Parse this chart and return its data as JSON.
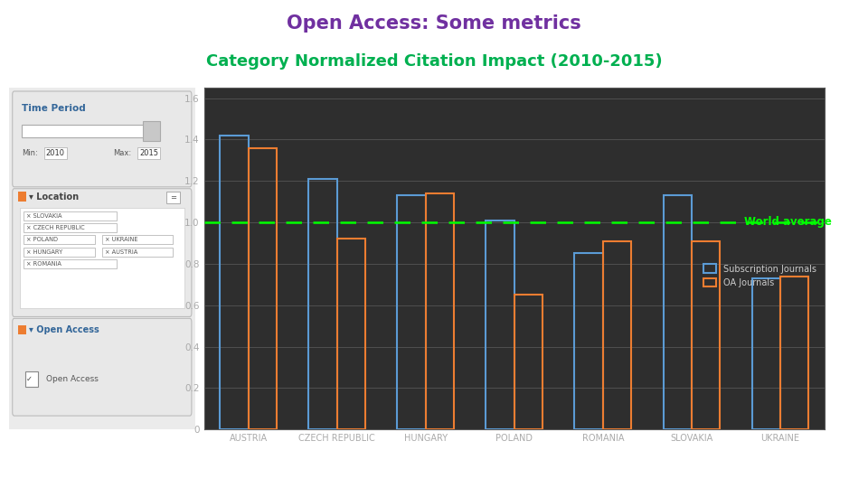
{
  "title_line1": "Open Access: Some metrics",
  "title_line2": "Category Normalized Citation Impact (2010-2015)",
  "title_line1_color": "#7030A0",
  "title_line2_color": "#00B050",
  "categories": [
    "AUSTRIA",
    "CZECH REPUBLIC",
    "HUNGARY",
    "POLAND",
    "ROMANIA",
    "SLOVAKIA",
    "UKRAINE"
  ],
  "subscription_values": [
    1.42,
    1.21,
    1.13,
    1.01,
    0.85,
    1.13,
    0.73
  ],
  "oa_values": [
    1.36,
    0.92,
    1.14,
    0.65,
    0.91,
    0.91,
    0.74
  ],
  "subscription_color": "#5B9BD5",
  "oa_color": "#ED7D31",
  "bar_edge_width": 1.5,
  "world_average": 1.0,
  "world_avg_color": "#00FF00",
  "world_avg_label": "World average",
  "plot_bg_color": "#2E2E2E",
  "grid_color": "#555555",
  "tick_color": "#AAAAAA",
  "text_color": "#CCCCCC",
  "ylim": [
    0,
    1.65
  ],
  "yticks": [
    0,
    0.2,
    0.4,
    0.6,
    0.8,
    1.0,
    1.2,
    1.4,
    1.6
  ],
  "legend_sub_label": "Subscription Journals",
  "legend_oa_label": "OA Journals",
  "bar_width": 0.32,
  "panel_bg": "#EBEBEB",
  "panel_border": "#CCCCCC",
  "white": "#FFFFFF"
}
